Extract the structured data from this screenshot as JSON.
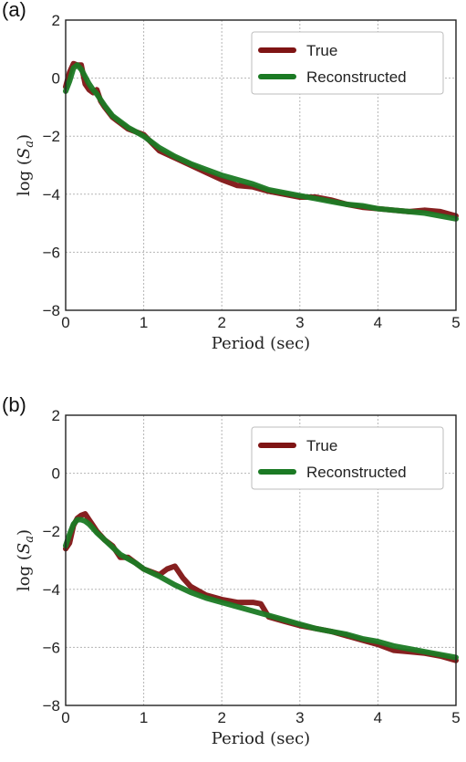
{
  "chart_data": [
    {
      "type": "line",
      "panel_label": "(a)",
      "xlabel": "Period (sec)",
      "ylabel": "log (S_a)",
      "ylabel_main": "log (",
      "ylabel_sym": "S",
      "ylabel_sub": "a",
      "ylabel_close": ")",
      "xlim": [
        0,
        5
      ],
      "ylim": [
        -8,
        2
      ],
      "x_ticks": [
        "0",
        "1",
        "2",
        "3",
        "4",
        "5"
      ],
      "y_ticks": [
        "−8",
        "−6",
        "−4",
        "−2",
        "0",
        "2"
      ],
      "grid": true,
      "legend_position": "top-right",
      "series": [
        {
          "name": "True",
          "color": "#7f1414",
          "x": [
            0.0,
            0.05,
            0.1,
            0.15,
            0.2,
            0.25,
            0.3,
            0.35,
            0.4,
            0.45,
            0.5,
            0.6,
            0.7,
            0.8,
            0.9,
            1.0,
            1.2,
            1.4,
            1.6,
            1.8,
            2.0,
            2.2,
            2.4,
            2.6,
            2.8,
            3.0,
            3.2,
            3.4,
            3.6,
            3.8,
            4.0,
            4.2,
            4.4,
            4.6,
            4.8,
            5.0
          ],
          "y": [
            -0.3,
            0.2,
            0.5,
            0.45,
            0.45,
            -0.2,
            -0.4,
            -0.5,
            -0.4,
            -0.8,
            -1.0,
            -1.35,
            -1.55,
            -1.75,
            -1.85,
            -1.95,
            -2.5,
            -2.75,
            -3.0,
            -3.25,
            -3.5,
            -3.7,
            -3.75,
            -3.9,
            -4.0,
            -4.1,
            -4.1,
            -4.2,
            -4.35,
            -4.45,
            -4.5,
            -4.55,
            -4.6,
            -4.55,
            -4.6,
            -4.75
          ]
        },
        {
          "name": "Reconstructed",
          "color": "#1b7a24",
          "x": [
            0.0,
            0.05,
            0.1,
            0.15,
            0.2,
            0.25,
            0.3,
            0.35,
            0.4,
            0.45,
            0.5,
            0.6,
            0.7,
            0.8,
            0.9,
            1.0,
            1.2,
            1.4,
            1.6,
            1.8,
            2.0,
            2.2,
            2.4,
            2.6,
            2.8,
            3.0,
            3.2,
            3.4,
            3.6,
            3.8,
            4.0,
            4.2,
            4.4,
            4.6,
            4.8,
            5.0
          ],
          "y": [
            -0.45,
            -0.1,
            0.35,
            0.45,
            0.3,
            0.05,
            -0.2,
            -0.4,
            -0.55,
            -0.75,
            -0.95,
            -1.3,
            -1.5,
            -1.7,
            -1.85,
            -2.0,
            -2.4,
            -2.7,
            -2.95,
            -3.15,
            -3.35,
            -3.5,
            -3.65,
            -3.85,
            -3.95,
            -4.05,
            -4.15,
            -4.25,
            -4.35,
            -4.4,
            -4.5,
            -4.55,
            -4.6,
            -4.65,
            -4.75,
            -4.85
          ]
        }
      ]
    },
    {
      "type": "line",
      "panel_label": "(b)",
      "xlabel": "Period (sec)",
      "ylabel": "log (S_a)",
      "ylabel_main": "log (",
      "ylabel_sym": "S",
      "ylabel_sub": "a",
      "ylabel_close": ")",
      "xlim": [
        0,
        5
      ],
      "ylim": [
        -8,
        2
      ],
      "x_ticks": [
        "0",
        "1",
        "2",
        "3",
        "4",
        "5"
      ],
      "y_ticks": [
        "−8",
        "−6",
        "−4",
        "−2",
        "0",
        "2"
      ],
      "grid": true,
      "legend_position": "top-right",
      "series": [
        {
          "name": "True",
          "color": "#7f1414",
          "x": [
            0.0,
            0.05,
            0.1,
            0.15,
            0.2,
            0.25,
            0.3,
            0.35,
            0.4,
            0.5,
            0.6,
            0.7,
            0.8,
            0.9,
            1.0,
            1.1,
            1.2,
            1.3,
            1.4,
            1.5,
            1.6,
            1.8,
            2.0,
            2.2,
            2.4,
            2.5,
            2.6,
            2.8,
            3.0,
            3.2,
            3.4,
            3.6,
            3.8,
            4.0,
            4.2,
            4.4,
            4.6,
            4.8,
            5.0
          ],
          "y": [
            -2.6,
            -2.4,
            -1.8,
            -1.55,
            -1.45,
            -1.4,
            -1.6,
            -1.8,
            -2.0,
            -2.3,
            -2.5,
            -2.9,
            -2.9,
            -3.1,
            -3.3,
            -3.4,
            -3.5,
            -3.3,
            -3.2,
            -3.6,
            -3.9,
            -4.2,
            -4.35,
            -4.45,
            -4.45,
            -4.5,
            -4.95,
            -5.1,
            -5.25,
            -5.35,
            -5.45,
            -5.6,
            -5.75,
            -5.9,
            -6.1,
            -6.15,
            -6.2,
            -6.3,
            -6.45
          ]
        },
        {
          "name": "Reconstructed",
          "color": "#1b7a24",
          "x": [
            0.0,
            0.05,
            0.1,
            0.15,
            0.2,
            0.25,
            0.3,
            0.35,
            0.4,
            0.5,
            0.6,
            0.7,
            0.8,
            0.9,
            1.0,
            1.2,
            1.4,
            1.6,
            1.8,
            2.0,
            2.2,
            2.4,
            2.6,
            2.8,
            3.0,
            3.2,
            3.4,
            3.6,
            3.8,
            4.0,
            4.2,
            4.4,
            4.6,
            4.8,
            5.0
          ],
          "y": [
            -2.5,
            -2.1,
            -1.75,
            -1.6,
            -1.6,
            -1.65,
            -1.75,
            -1.9,
            -2.05,
            -2.3,
            -2.55,
            -2.8,
            -2.95,
            -3.1,
            -3.3,
            -3.55,
            -3.85,
            -4.1,
            -4.3,
            -4.45,
            -4.6,
            -4.75,
            -4.9,
            -5.05,
            -5.2,
            -5.35,
            -5.45,
            -5.55,
            -5.7,
            -5.8,
            -5.95,
            -6.05,
            -6.15,
            -6.25,
            -6.35
          ]
        }
      ]
    }
  ]
}
